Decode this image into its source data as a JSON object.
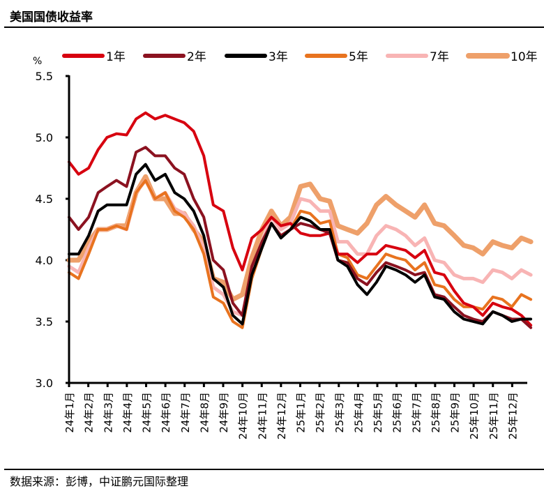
{
  "title": "美国国债收益率",
  "source": "数据来源：彭博，中证鹏元国际整理",
  "chart_data": {
    "type": "line",
    "title": "美国国债收益率",
    "ylabel": "%",
    "ylim": [
      3.0,
      5.5
    ],
    "yticks": [
      "3.0",
      "3.5",
      "4.0",
      "4.5",
      "5.0",
      "5.5"
    ],
    "grid": false,
    "legend": "top",
    "xtick_labels": [
      "24年1月",
      "24年2月",
      "24年3月",
      "24年4月",
      "24年5月",
      "24年6月",
      "24年7月",
      "24年8月",
      "24年9月",
      "24年10月",
      "24年11月",
      "24年12月",
      "25年1月",
      "25年2月",
      "25年3月",
      "25年4月",
      "25年5月",
      "25年6月",
      "25年7月",
      "25年8月",
      "25年9月",
      "25年10月",
      "25年11月",
      "25年12月"
    ],
    "x": [
      "2024-01-01",
      "2024-01-16",
      "2024-02-01",
      "2024-02-16",
      "2024-03-01",
      "2024-03-16",
      "2024-04-01",
      "2024-04-16",
      "2024-05-01",
      "2024-05-16",
      "2024-06-01",
      "2024-06-16",
      "2024-07-01",
      "2024-07-16",
      "2024-08-01",
      "2024-08-16",
      "2024-09-01",
      "2024-09-16",
      "2024-10-01",
      "2024-10-16",
      "2024-11-01",
      "2024-11-16",
      "2024-12-01",
      "2024-12-16",
      "2025-01-01",
      "2025-01-16",
      "2025-02-01",
      "2025-02-16",
      "2025-03-01",
      "2025-03-16",
      "2025-04-01",
      "2025-04-16",
      "2025-05-01",
      "2025-05-16",
      "2025-06-01",
      "2025-06-16",
      "2025-07-01",
      "2025-07-16",
      "2025-08-01",
      "2025-08-16",
      "2025-09-01",
      "2025-09-16",
      "2025-10-01",
      "2025-10-16",
      "2025-11-01",
      "2025-11-16",
      "2025-12-01",
      "2025-12-16",
      "2025-12-31"
    ],
    "series": [
      {
        "name": "1年",
        "color": "#d7000f",
        "values": [
          4.8,
          4.7,
          4.75,
          4.9,
          5.0,
          5.03,
          5.02,
          5.15,
          5.2,
          5.15,
          5.18,
          5.15,
          5.12,
          5.05,
          4.85,
          4.45,
          4.4,
          4.1,
          3.92,
          4.18,
          4.25,
          4.35,
          4.28,
          4.3,
          4.22,
          4.2,
          4.2,
          4.22,
          4.05,
          4.05,
          3.98,
          4.05,
          4.05,
          4.12,
          4.1,
          4.08,
          4.02,
          4.08,
          3.9,
          3.88,
          3.75,
          3.65,
          3.62,
          3.55,
          3.65,
          3.62,
          3.6,
          3.55,
          3.47
        ]
      },
      {
        "name": "2年",
        "color": "#8b1220",
        "values": [
          4.35,
          4.25,
          4.35,
          4.55,
          4.6,
          4.65,
          4.6,
          4.88,
          4.92,
          4.85,
          4.85,
          4.75,
          4.7,
          4.5,
          4.35,
          4.0,
          3.92,
          3.65,
          3.55,
          3.95,
          4.15,
          4.3,
          4.2,
          4.25,
          4.3,
          4.28,
          4.25,
          4.22,
          4.0,
          3.98,
          3.85,
          3.8,
          3.9,
          3.98,
          3.95,
          3.92,
          3.88,
          3.9,
          3.72,
          3.7,
          3.62,
          3.55,
          3.52,
          3.5,
          3.58,
          3.55,
          3.52,
          3.52,
          3.45
        ]
      },
      {
        "name": "3年",
        "color": "#000000",
        "values": [
          4.05,
          4.05,
          4.2,
          4.4,
          4.45,
          4.45,
          4.45,
          4.7,
          4.78,
          4.65,
          4.7,
          4.55,
          4.5,
          4.4,
          4.2,
          3.85,
          3.78,
          3.55,
          3.48,
          3.88,
          4.1,
          4.3,
          4.18,
          4.25,
          4.35,
          4.32,
          4.25,
          4.25,
          4.0,
          3.95,
          3.8,
          3.72,
          3.82,
          3.95,
          3.92,
          3.88,
          3.82,
          3.88,
          3.7,
          3.68,
          3.58,
          3.52,
          3.5,
          3.48,
          3.58,
          3.55,
          3.5,
          3.52,
          3.52
        ]
      },
      {
        "name": "5年",
        "color": "#e8731f",
        "values": [
          3.9,
          3.85,
          4.05,
          4.25,
          4.25,
          4.28,
          4.25,
          4.55,
          4.65,
          4.5,
          4.55,
          4.4,
          4.35,
          4.25,
          4.05,
          3.7,
          3.65,
          3.5,
          3.45,
          3.85,
          4.1,
          4.3,
          4.2,
          4.25,
          4.4,
          4.38,
          4.3,
          4.32,
          4.05,
          4.02,
          3.88,
          3.85,
          3.95,
          4.05,
          4.02,
          4.0,
          3.92,
          3.98,
          3.8,
          3.78,
          3.68,
          3.62,
          3.62,
          3.6,
          3.7,
          3.68,
          3.62,
          3.72,
          3.68
        ]
      },
      {
        "name": "7年",
        "color": "#f8b4b4",
        "values": [
          3.95,
          3.9,
          4.1,
          4.25,
          4.25,
          4.28,
          4.25,
          4.55,
          4.65,
          4.5,
          4.55,
          4.42,
          4.38,
          4.28,
          4.1,
          3.78,
          3.72,
          3.58,
          3.55,
          3.92,
          4.15,
          4.35,
          4.25,
          4.3,
          4.5,
          4.48,
          4.4,
          4.4,
          4.15,
          4.15,
          4.05,
          4.05,
          4.2,
          4.28,
          4.25,
          4.2,
          4.12,
          4.18,
          4.0,
          3.98,
          3.88,
          3.85,
          3.85,
          3.82,
          3.92,
          3.9,
          3.85,
          3.92,
          3.88
        ]
      },
      {
        "name": "10年",
        "color": "#eea06a",
        "values": [
          4.0,
          4.0,
          4.15,
          4.25,
          4.25,
          4.28,
          4.28,
          4.55,
          4.68,
          4.5,
          4.5,
          4.38,
          4.38,
          4.25,
          4.15,
          3.85,
          3.82,
          3.68,
          3.72,
          4.02,
          4.25,
          4.4,
          4.28,
          4.35,
          4.6,
          4.62,
          4.5,
          4.48,
          4.28,
          4.25,
          4.22,
          4.3,
          4.45,
          4.52,
          4.45,
          4.4,
          4.35,
          4.45,
          4.3,
          4.28,
          4.2,
          4.12,
          4.1,
          4.05,
          4.15,
          4.12,
          4.1,
          4.18,
          4.15
        ]
      }
    ]
  }
}
